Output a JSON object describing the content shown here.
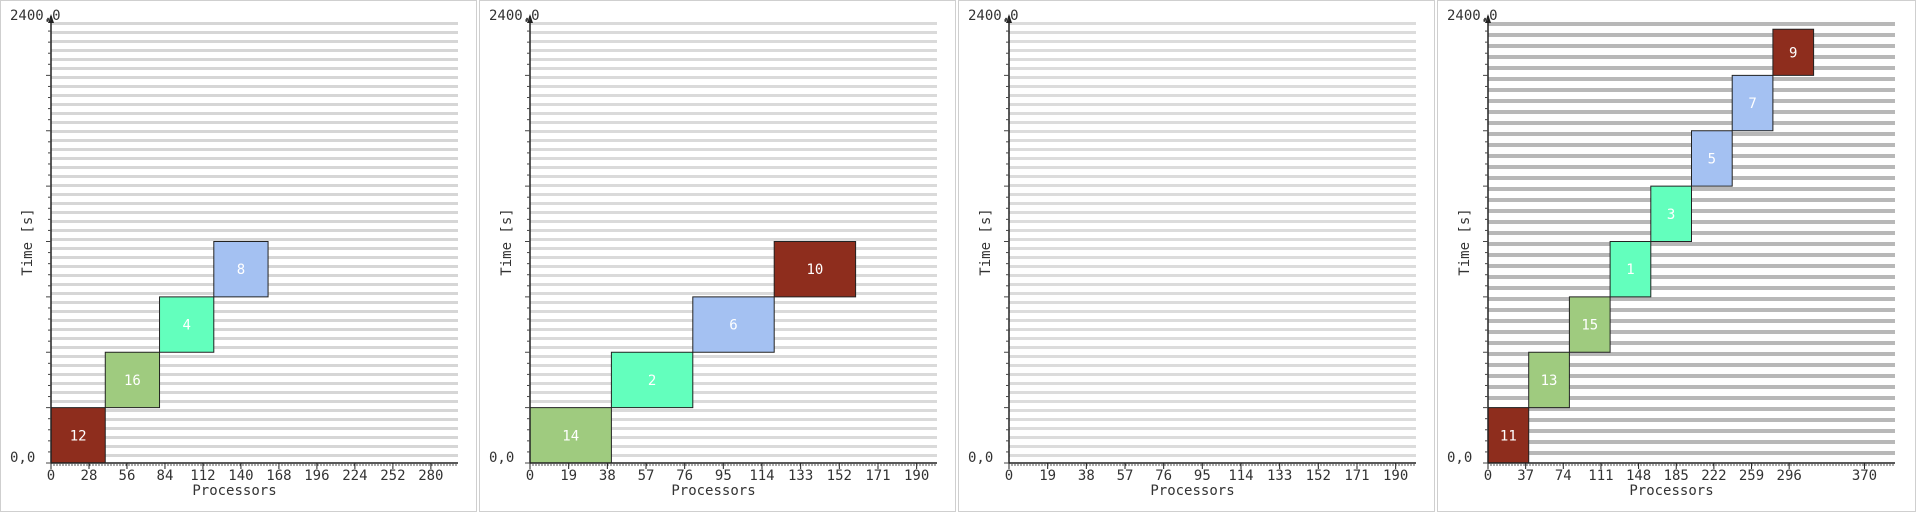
{
  "chart_data": [
    {
      "type": "gantt",
      "xlabel": "Processors",
      "ylabel": "Time [s]",
      "ytick_top": "2400,0",
      "ytick_bottom": "0,0",
      "xticks": [
        "0",
        "28",
        "56",
        "84",
        "112",
        "140",
        "168",
        "196",
        "224",
        "252",
        "280"
      ],
      "xmax": 300,
      "ymax": 2400,
      "tasks": [
        {
          "id": "12",
          "x0": 0,
          "x1": 40,
          "y0": 0,
          "y1": 300,
          "color": "#8e2d1d"
        },
        {
          "id": "16",
          "x0": 40,
          "x1": 80,
          "y0": 300,
          "y1": 600,
          "color": "#9fcb7f"
        },
        {
          "id": "4",
          "x0": 80,
          "x1": 120,
          "y0": 600,
          "y1": 900,
          "color": "#63ffbd"
        },
        {
          "id": "8",
          "x0": 120,
          "x1": 160,
          "y0": 900,
          "y1": 1200,
          "color": "#a4c1f2"
        }
      ]
    },
    {
      "type": "gantt",
      "xlabel": "Processors",
      "ylabel": "Time [s]",
      "ytick_top": "2400,0",
      "ytick_bottom": "0,0",
      "xticks": [
        "0",
        "19",
        "38",
        "57",
        "76",
        "95",
        "114",
        "133",
        "152",
        "171",
        "190"
      ],
      "xmax": 200,
      "ymax": 2400,
      "tasks": [
        {
          "id": "14",
          "x0": 0,
          "x1": 40,
          "y0": 0,
          "y1": 300,
          "color": "#9fcb7f"
        },
        {
          "id": "2",
          "x0": 40,
          "x1": 80,
          "y0": 300,
          "y1": 600,
          "color": "#63ffbd"
        },
        {
          "id": "6",
          "x0": 80,
          "x1": 120,
          "y0": 600,
          "y1": 900,
          "color": "#a4c1f2"
        },
        {
          "id": "10",
          "x0": 120,
          "x1": 160,
          "y0": 900,
          "y1": 1200,
          "color": "#8e2d1d"
        }
      ]
    },
    {
      "type": "gantt",
      "xlabel": "Processors",
      "ylabel": "Time [s]",
      "ytick_top": "2400,0",
      "ytick_bottom": "0,0",
      "xticks": [
        "0",
        "19",
        "38",
        "57",
        "76",
        "95",
        "114",
        "133",
        "152",
        "171",
        "190"
      ],
      "xmax": 200,
      "ymax": 2400,
      "tasks": []
    },
    {
      "type": "gantt",
      "xlabel": "Processors",
      "ylabel": "Time [s]",
      "ytick_top": "2400,0",
      "ytick_bottom": "0,0",
      "xticks": [
        "0",
        "37",
        "74",
        "111",
        "148",
        "185",
        "222",
        "259",
        "296",
        "370"
      ],
      "xmax": 400,
      "ymax": 2400,
      "tasks": [
        {
          "id": "11",
          "x0": 0,
          "x1": 40,
          "y0": 0,
          "y1": 300,
          "color": "#8e2d1d"
        },
        {
          "id": "13",
          "x0": 40,
          "x1": 80,
          "y0": 300,
          "y1": 600,
          "color": "#9fcb7f"
        },
        {
          "id": "15",
          "x0": 80,
          "x1": 120,
          "y0": 600,
          "y1": 900,
          "color": "#9fcb7f"
        },
        {
          "id": "1",
          "x0": 120,
          "x1": 160,
          "y0": 900,
          "y1": 1200,
          "color": "#63ffbd"
        },
        {
          "id": "3",
          "x0": 160,
          "x1": 200,
          "y0": 1200,
          "y1": 1500,
          "color": "#63ffbd"
        },
        {
          "id": "5",
          "x0": 200,
          "x1": 240,
          "y0": 1500,
          "y1": 1800,
          "color": "#a4c1f2"
        },
        {
          "id": "7",
          "x0": 240,
          "x1": 280,
          "y0": 1800,
          "y1": 2100,
          "color": "#a4c1f2"
        },
        {
          "id": "9",
          "x0": 280,
          "x1": 320,
          "y0": 2100,
          "y1": 2350,
          "color": "#8e2d1d"
        }
      ]
    }
  ]
}
